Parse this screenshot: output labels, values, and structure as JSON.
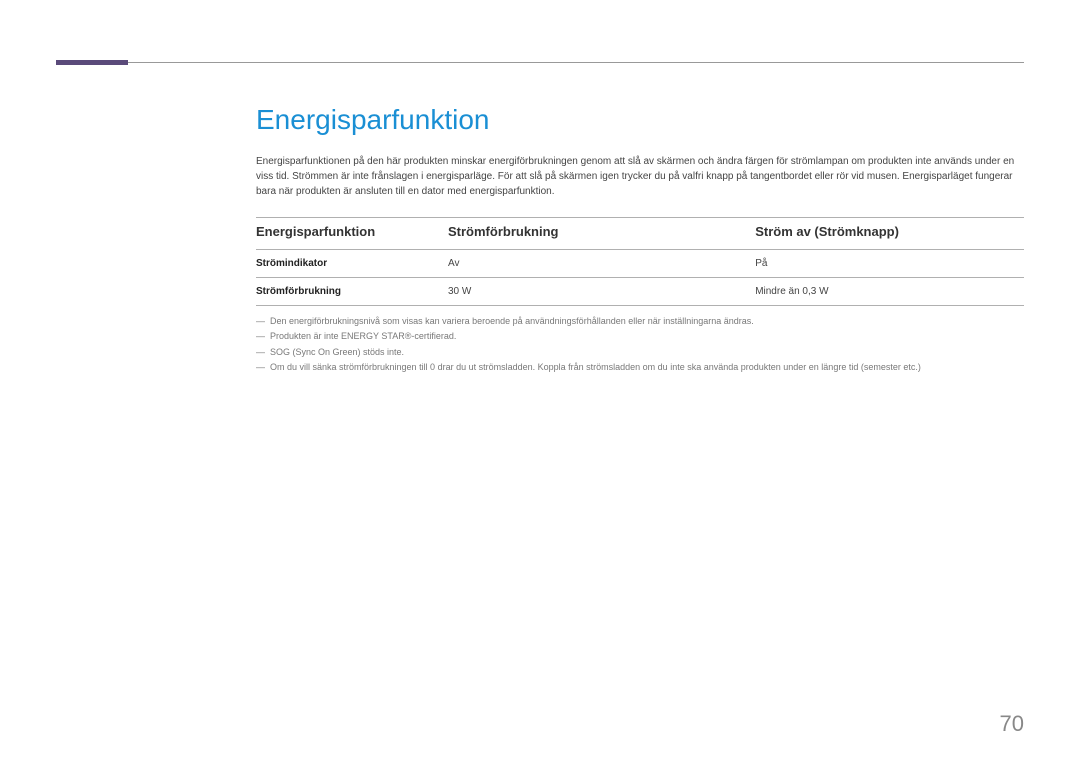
{
  "heading": "Energisparfunktion",
  "intro": "Energisparfunktionen på den här produkten minskar energiförbrukningen genom att slå av skärmen och ändra färgen för strömlampan om produkten inte används under en viss tid. Strömmen är inte frånslagen i energisparläge. För att slå på skärmen igen trycker du på valfri knapp på tangentbordet eller rör vid musen. Energisparläget fungerar bara när produkten är ansluten till en dator med energisparfunktion.",
  "table": {
    "headers": {
      "c1": "Energisparfunktion",
      "c2": "Strömförbrukning",
      "c3": "Ström av (Strömknapp)"
    },
    "rows": [
      {
        "label": "Strömindikator",
        "c2": "Av",
        "c3": "På"
      },
      {
        "label": "Strömförbrukning",
        "c2": "30 W",
        "c3": "Mindre än 0,3 W"
      }
    ]
  },
  "notes": [
    "Den energiförbrukningsnivå som visas kan variera beroende på användningsförhållanden eller när inställningarna ändras.",
    "Produkten är inte ENERGY STAR®-certifierad.",
    "SOG (Sync On Green) stöds inte.",
    "Om du vill sänka strömförbrukningen till 0 drar du ut strömsladden. Koppla från strömsladden om du inte ska använda produkten under en längre tid (semester etc.)"
  ],
  "page_number": "70",
  "colors": {
    "accent": "#5a4a7a",
    "heading": "#1a8fd4",
    "rule": "#999999",
    "note_text": "#787878",
    "page_num": "#888888"
  }
}
